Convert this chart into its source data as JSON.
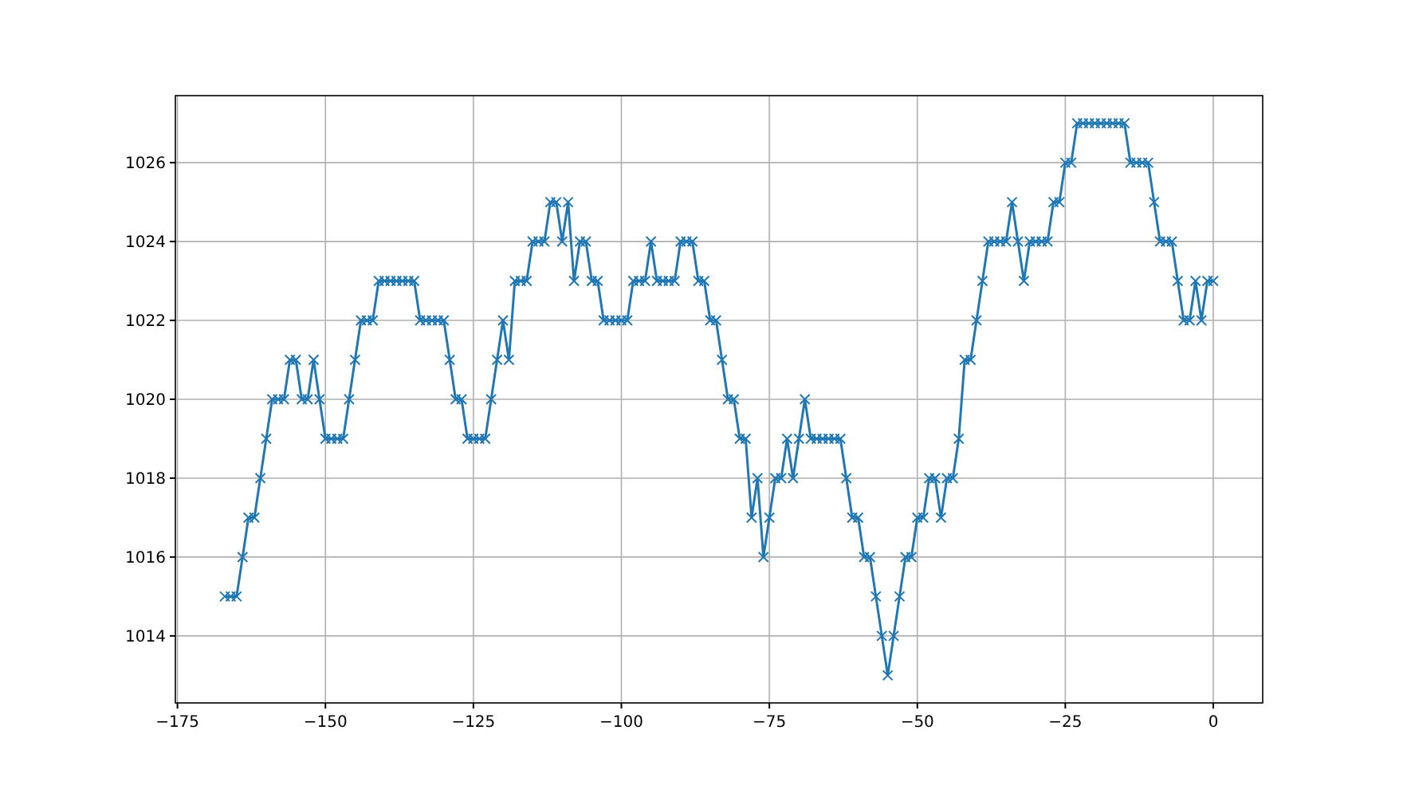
{
  "chart_data": {
    "type": "line",
    "x": [
      -167,
      -166,
      -165,
      -164,
      -163,
      -162,
      -161,
      -160,
      -159,
      -158,
      -157,
      -156,
      -155,
      -154,
      -153,
      -152,
      -151,
      -150,
      -149,
      -148,
      -147,
      -146,
      -145,
      -144,
      -143,
      -142,
      -141,
      -140,
      -139,
      -138,
      -137,
      -136,
      -135,
      -134,
      -133,
      -132,
      -131,
      -130,
      -129,
      -128,
      -127,
      -126,
      -125,
      -124,
      -123,
      -122,
      -121,
      -120,
      -119,
      -118,
      -117,
      -116,
      -115,
      -114,
      -113,
      -112,
      -111,
      -110,
      -109,
      -108,
      -107,
      -106,
      -105,
      -104,
      -103,
      -102,
      -101,
      -100,
      -99,
      -98,
      -97,
      -96,
      -95,
      -94,
      -93,
      -92,
      -91,
      -90,
      -89,
      -88,
      -87,
      -86,
      -85,
      -84,
      -83,
      -82,
      -81,
      -80,
      -79,
      -78,
      -77,
      -76,
      -75,
      -74,
      -73,
      -72,
      -71,
      -70,
      -69,
      -68,
      -67,
      -66,
      -65,
      -64,
      -63,
      -62,
      -61,
      -60,
      -59,
      -58,
      -57,
      -56,
      -55,
      -54,
      -53,
      -52,
      -51,
      -50,
      -49,
      -48,
      -47,
      -46,
      -45,
      -44,
      -43,
      -42,
      -41,
      -40,
      -39,
      -38,
      -37,
      -36,
      -35,
      -34,
      -33,
      -32,
      -31,
      -30,
      -29,
      -28,
      -27,
      -26,
      -25,
      -24,
      -23,
      -22,
      -21,
      -20,
      -19,
      -18,
      -17,
      -16,
      -15,
      -14,
      -13,
      -12,
      -11,
      -10,
      -9,
      -8,
      -7,
      -6,
      -5,
      -4,
      -3,
      -2,
      -1,
      0
    ],
    "series": [
      {
        "color": "#1f77b4",
        "values": [
          1015,
          1015,
          1015,
          1016,
          1017,
          1017,
          1018,
          1019,
          1020,
          1020,
          1020,
          1021,
          1021,
          1020,
          1020,
          1021,
          1020,
          1019,
          1019,
          1019,
          1019,
          1020,
          1021,
          1022,
          1022,
          1022,
          1023,
          1023,
          1023,
          1023,
          1023,
          1023,
          1023,
          1022,
          1022,
          1022,
          1022,
          1022,
          1021,
          1020,
          1020,
          1019,
          1019,
          1019,
          1019,
          1020,
          1021,
          1022,
          1021,
          1023,
          1023,
          1023,
          1024,
          1024,
          1024,
          1025,
          1025,
          1024,
          1025,
          1023,
          1024,
          1024,
          1023,
          1023,
          1022,
          1022,
          1022,
          1022,
          1022,
          1023,
          1023,
          1023,
          1024,
          1023,
          1023,
          1023,
          1023,
          1024,
          1024,
          1024,
          1023,
          1023,
          1022,
          1022,
          1021,
          1020,
          1020,
          1019,
          1019,
          1017,
          1018,
          1016,
          1017,
          1018,
          1018,
          1019,
          1018,
          1019,
          1020,
          1019,
          1019,
          1019,
          1019,
          1019,
          1019,
          1018,
          1017,
          1017,
          1016,
          1016,
          1015,
          1014,
          1013,
          1014,
          1015,
          1016,
          1016,
          1017,
          1017,
          1018,
          1018,
          1017,
          1018,
          1018,
          1019,
          1021,
          1021,
          1022,
          1023,
          1024,
          1024,
          1024,
          1024,
          1025,
          1024,
          1023,
          1024,
          1024,
          1024,
          1024,
          1025,
          1025,
          1026,
          1026,
          1027,
          1027,
          1027,
          1027,
          1027,
          1027,
          1027,
          1027,
          1027,
          1026,
          1026,
          1026,
          1026,
          1025,
          1024,
          1024,
          1024,
          1023,
          1022,
          1022,
          1023,
          1022,
          1023,
          1023
        ]
      }
    ],
    "xlim": [
      -175.35,
      8.35
    ],
    "xticks": [
      {
        "value": -175,
        "label": "−175"
      },
      {
        "value": -150,
        "label": "−150"
      },
      {
        "value": -125,
        "label": "−125"
      },
      {
        "value": -100,
        "label": "−100"
      },
      {
        "value": -75,
        "label": "−75"
      },
      {
        "value": -50,
        "label": "−50"
      },
      {
        "value": -25,
        "label": "−25"
      },
      0
    ],
    "ylim": [
      1012.3,
      1027.7
    ],
    "yticks": [
      1014,
      1016,
      1018,
      1020,
      1022,
      1024,
      1026
    ],
    "grid": true,
    "marker": "cross",
    "line_style": "solid"
  }
}
